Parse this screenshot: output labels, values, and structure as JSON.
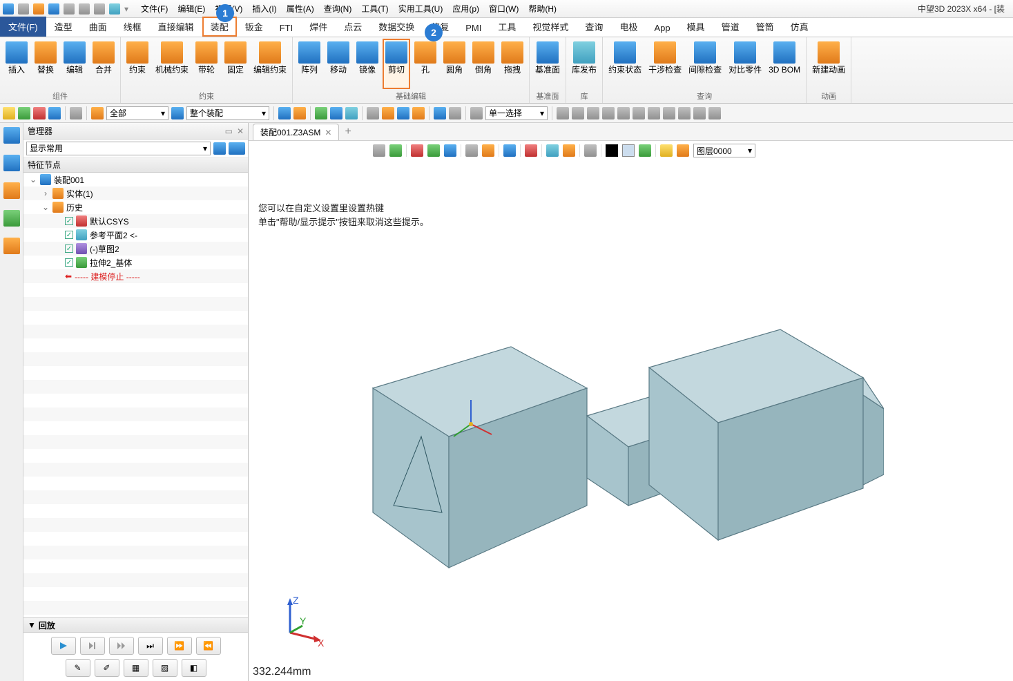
{
  "app_title": "中望3D 2023X x64 - [装",
  "menus": [
    "文件(F)",
    "编辑(E)",
    "视图(V)",
    "插入(I)",
    "属性(A)",
    "查询(N)",
    "工具(T)",
    "实用工具(U)",
    "应用(p)",
    "窗口(W)",
    "帮助(H)"
  ],
  "ribbon_tabs": [
    "文件(F)",
    "造型",
    "曲面",
    "线框",
    "直接编辑",
    "装配",
    "钣金",
    "FTI",
    "焊件",
    "点云",
    "数据交换",
    "修复",
    "PMI",
    "工具",
    "视觉样式",
    "查询",
    "电极",
    "App",
    "模具",
    "管道",
    "管筒",
    "仿真"
  ],
  "active_tab_index": 0,
  "highlighted_tab_index": 5,
  "callouts": {
    "tab": "1",
    "button": "2"
  },
  "ribbon_groups": [
    {
      "label": "组件",
      "buttons": [
        {
          "l": "插入",
          "c": "blue"
        },
        {
          "l": "替换",
          "c": "orange"
        },
        {
          "l": "编辑",
          "c": "blue"
        },
        {
          "l": "合并",
          "c": "orange"
        }
      ]
    },
    {
      "label": "约束",
      "buttons": [
        {
          "l": "约束",
          "c": "orange"
        },
        {
          "l": "机械约束",
          "c": "orange"
        },
        {
          "l": "带轮",
          "c": "orange"
        },
        {
          "l": "固定",
          "c": "orange"
        },
        {
          "l": "编辑约束",
          "c": "orange"
        }
      ]
    },
    {
      "label": "基础编辑",
      "buttons": [
        {
          "l": "阵列",
          "c": "blue"
        },
        {
          "l": "移动",
          "c": "blue"
        },
        {
          "l": "镜像",
          "c": "blue"
        },
        {
          "l": "剪切",
          "c": "blue",
          "hl": true
        },
        {
          "l": "孔",
          "c": "orange"
        },
        {
          "l": "圆角",
          "c": "orange"
        },
        {
          "l": "倒角",
          "c": "orange"
        },
        {
          "l": "拖拽",
          "c": "orange"
        }
      ]
    },
    {
      "label": "基准面",
      "buttons": [
        {
          "l": "基准面",
          "c": "blue"
        }
      ]
    },
    {
      "label": "库",
      "buttons": [
        {
          "l": "库发布",
          "c": "cyan"
        }
      ]
    },
    {
      "label": "查询",
      "buttons": [
        {
          "l": "约束状态",
          "c": "blue"
        },
        {
          "l": "干涉检查",
          "c": "orange"
        },
        {
          "l": "间隙检查",
          "c": "blue"
        },
        {
          "l": "对比零件",
          "c": "blue"
        },
        {
          "l": "3D BOM",
          "c": "blue"
        }
      ]
    },
    {
      "label": "动画",
      "buttons": [
        {
          "l": "新建动画",
          "c": "orange"
        }
      ]
    }
  ],
  "toolbar2": {
    "filter_dropdown1": "全部",
    "filter_dropdown2": "整个装配",
    "select_mode": "单一选择"
  },
  "manager": {
    "title": "管理器",
    "display_dropdown": "显示常用",
    "feature_header": "特征节点",
    "tree": [
      {
        "depth": 0,
        "arrow": "⌄",
        "icon": "asm",
        "label": "装配001",
        "cb": false
      },
      {
        "depth": 1,
        "arrow": "›",
        "icon": "part",
        "label": "实体(1)",
        "cb": false
      },
      {
        "depth": 1,
        "arrow": "⌄",
        "icon": "folder",
        "label": "历史",
        "cb": false
      },
      {
        "depth": 2,
        "arrow": "",
        "icon": "csys",
        "label": "默认CSYS",
        "cb": true
      },
      {
        "depth": 2,
        "arrow": "",
        "icon": "plane",
        "label": "参考平面2 <-",
        "cb": true
      },
      {
        "depth": 2,
        "arrow": "",
        "icon": "sketch",
        "label": "(-)草图2",
        "cb": true
      },
      {
        "depth": 2,
        "arrow": "",
        "icon": "extrude",
        "label": "拉伸2_基体",
        "cb": true
      },
      {
        "depth": 2,
        "arrow": "",
        "icon": "stop",
        "label": "----- 建模停止 -----",
        "cb": false,
        "stop": true
      }
    ],
    "playback_label": "回放"
  },
  "doc_tab": "装配001.Z3ASM",
  "layer_dropdown": "图层0000",
  "hints": [
    "您可以在自定义设置里设置热键",
    "单击\"帮助/显示提示\"按钮来取消这些提示。"
  ],
  "coord_readout": "332.244mm",
  "model": {
    "fill_color": "#a7c4cc",
    "stroke_color": "#5a7a85",
    "background": "#ffffff"
  },
  "axis": {
    "x": "X",
    "y": "Y",
    "z": "Z",
    "x_color": "#d03030",
    "y_color": "#30a030",
    "z_color": "#3060d0"
  }
}
